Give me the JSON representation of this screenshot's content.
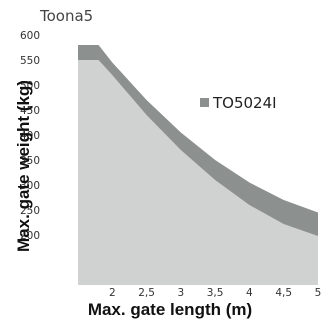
{
  "chart_data": {
    "type": "area",
    "title": "Toona5",
    "xlabel": "Max. gate length (m)",
    "ylabel": "Max. gate weight (kg)",
    "x_ticks": [
      "2",
      "2,5",
      "3",
      "3,5",
      "4",
      "4,5",
      "5"
    ],
    "y_ticks": [
      "200",
      "250",
      "300",
      "350",
      "400",
      "450",
      "500",
      "550",
      "600"
    ],
    "xlim": [
      1.5,
      5
    ],
    "ylim": [
      100,
      600
    ],
    "legend_position": "top-right",
    "series": [
      {
        "name": "TO5024I",
        "color": "#8c908e",
        "x": [
          1.5,
          1.8,
          2.0,
          2.5,
          3.0,
          3.5,
          4.0,
          4.5,
          5.0
        ],
        "values": [
          580,
          580,
          545,
          470,
          405,
          350,
          305,
          270,
          245
        ]
      },
      {
        "name": "",
        "color": "#cfd2d1",
        "x": [
          1.5,
          1.8,
          2.0,
          2.5,
          3.0,
          3.5,
          4.0,
          4.5,
          5.0
        ],
        "values": [
          550,
          550,
          520,
          440,
          370,
          310,
          260,
          222,
          198
        ]
      }
    ]
  }
}
